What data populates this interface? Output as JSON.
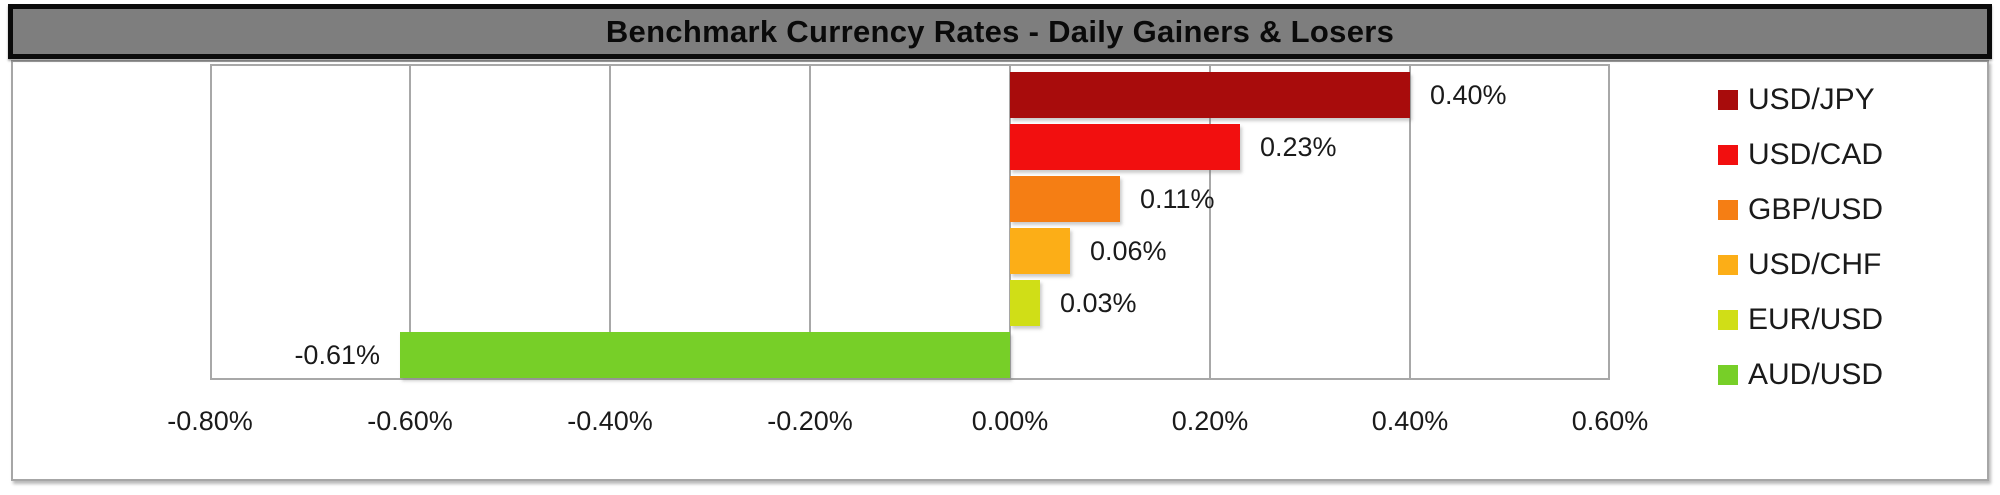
{
  "title": "Benchmark Currency Rates - Daily Gainers & Losers",
  "chart_data": {
    "type": "bar",
    "orientation": "horizontal",
    "title": "Benchmark Currency Rates - Daily Gainers & Losers",
    "categories": [
      "USD/JPY",
      "USD/CAD",
      "GBP/USD",
      "USD/CHF",
      "EUR/USD",
      "AUD/USD"
    ],
    "series": [
      {
        "name": "USD/JPY",
        "value_pct": 0.4,
        "label": "0.40%",
        "color": "#a80c0c"
      },
      {
        "name": "USD/CAD",
        "value_pct": 0.23,
        "label": "0.23%",
        "color": "#f20f0f"
      },
      {
        "name": "GBP/USD",
        "value_pct": 0.11,
        "label": "0.11%",
        "color": "#f57e14"
      },
      {
        "name": "USD/CHF",
        "value_pct": 0.06,
        "label": "0.06%",
        "color": "#fcae17"
      },
      {
        "name": "EUR/USD",
        "value_pct": 0.03,
        "label": "0.03%",
        "color": "#d0de17"
      },
      {
        "name": "AUD/USD",
        "value_pct": -0.61,
        "label": "-0.61%",
        "color": "#77cf28"
      }
    ],
    "x_axis": {
      "range_pct": [
        -0.8,
        0.6
      ],
      "tick_step_pct": 0.2,
      "ticks": [
        {
          "value_pct": -0.8,
          "label": "-0.80%"
        },
        {
          "value_pct": -0.6,
          "label": "-0.60%"
        },
        {
          "value_pct": -0.4,
          "label": "-0.40%"
        },
        {
          "value_pct": -0.2,
          "label": "-0.20%"
        },
        {
          "value_pct": 0.0,
          "label": "0.00%"
        },
        {
          "value_pct": 0.2,
          "label": "0.20%"
        },
        {
          "value_pct": 0.4,
          "label": "0.40%"
        },
        {
          "value_pct": 0.6,
          "label": "0.60%"
        }
      ]
    },
    "grid": true,
    "legend_position": "right",
    "data_labels": "outside-end"
  }
}
